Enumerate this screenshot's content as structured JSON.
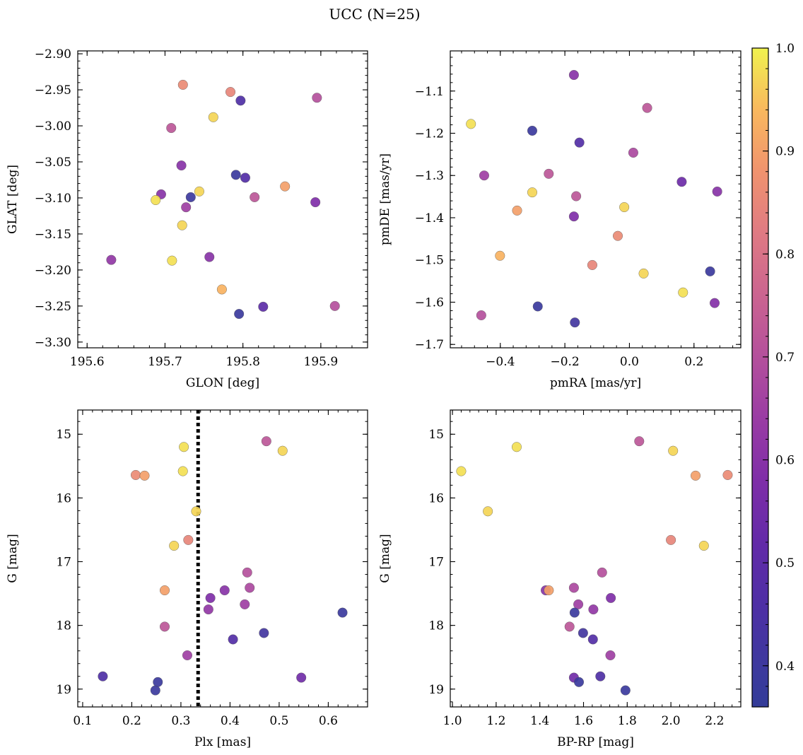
{
  "title": "UCC (N=25)",
  "colormap": {
    "name": "plasma",
    "range": [
      0.36,
      1.0
    ],
    "ticks": [
      0.4,
      0.5,
      0.6,
      0.7,
      0.8,
      0.9,
      1.0
    ],
    "tick_labels": [
      "0.4",
      "0.5",
      "0.6",
      "0.7",
      "0.8",
      "0.9",
      "1.0"
    ]
  },
  "chart_data": [
    {
      "type": "scatter",
      "panel": "top-left",
      "xlabel": "GLON [deg]",
      "ylabel": "GLAT [deg]",
      "xlim": [
        195.588,
        195.96
      ],
      "ylim": [
        -3.308,
        -2.896
      ],
      "xticks": [
        195.6,
        195.7,
        195.8,
        195.9
      ],
      "xtick_labels": [
        "195.6",
        "195.7",
        "195.8",
        "195.9"
      ],
      "yticks": [
        -2.9,
        -2.95,
        -3.0,
        -3.05,
        -3.1,
        -3.15,
        -3.2,
        -3.25,
        -3.3
      ],
      "ytick_labels": [
        "−2.90",
        "−2.95",
        "−3.00",
        "−3.05",
        "−3.10",
        "−3.15",
        "−3.20",
        "−3.25",
        "−3.30"
      ],
      "points": [
        {
          "x": 195.723,
          "y": -2.943,
          "c": 0.86
        },
        {
          "x": 195.784,
          "y": -2.953,
          "c": 0.85
        },
        {
          "x": 195.797,
          "y": -2.965,
          "c": 0.46
        },
        {
          "x": 195.895,
          "y": -2.961,
          "c": 0.7
        },
        {
          "x": 195.762,
          "y": -2.988,
          "c": 0.97
        },
        {
          "x": 195.708,
          "y": -3.003,
          "c": 0.72
        },
        {
          "x": 195.721,
          "y": -3.055,
          "c": 0.6
        },
        {
          "x": 195.791,
          "y": -3.068,
          "c": 0.39
        },
        {
          "x": 195.803,
          "y": -3.072,
          "c": 0.47
        },
        {
          "x": 195.854,
          "y": -3.084,
          "c": 0.9
        },
        {
          "x": 195.744,
          "y": -3.091,
          "c": 0.97
        },
        {
          "x": 195.695,
          "y": -3.095,
          "c": 0.6
        },
        {
          "x": 195.733,
          "y": -3.099,
          "c": 0.4
        },
        {
          "x": 195.815,
          "y": -3.099,
          "c": 0.72
        },
        {
          "x": 195.688,
          "y": -3.103,
          "c": 0.98
        },
        {
          "x": 195.893,
          "y": -3.106,
          "c": 0.58
        },
        {
          "x": 195.727,
          "y": -3.113,
          "c": 0.65
        },
        {
          "x": 195.722,
          "y": -3.138,
          "c": 0.97
        },
        {
          "x": 195.631,
          "y": -3.186,
          "c": 0.62
        },
        {
          "x": 195.709,
          "y": -3.187,
          "c": 0.98
        },
        {
          "x": 195.757,
          "y": -3.182,
          "c": 0.6
        },
        {
          "x": 195.773,
          "y": -3.227,
          "c": 0.93
        },
        {
          "x": 195.826,
          "y": -3.251,
          "c": 0.5
        },
        {
          "x": 195.918,
          "y": -3.25,
          "c": 0.7
        },
        {
          "x": 195.795,
          "y": -3.261,
          "c": 0.39
        }
      ]
    },
    {
      "type": "scatter",
      "panel": "top-right",
      "xlabel": "pmRA [mas/yr]",
      "ylabel": "pmDE [mas/yr]",
      "xlim": [
        -0.555,
        0.345
      ],
      "ylim": [
        -1.708,
        -1.005
      ],
      "xticks": [
        -0.4,
        -0.2,
        0.0,
        0.2
      ],
      "xtick_labels": [
        "−0.4",
        "−0.2",
        "0.0",
        "0.2"
      ],
      "yticks": [
        -1.1,
        -1.2,
        -1.3,
        -1.4,
        -1.5,
        -1.6,
        -1.7
      ],
      "ytick_labels": [
        "−1.1",
        "−1.2",
        "−1.3",
        "−1.4",
        "−1.5",
        "−1.6",
        "−1.7"
      ],
      "points": [
        {
          "x": -0.172,
          "y": -1.062,
          "c": 0.6
        },
        {
          "x": 0.055,
          "y": -1.14,
          "c": 0.72
        },
        {
          "x": -0.491,
          "y": -1.178,
          "c": 0.98
        },
        {
          "x": -0.301,
          "y": -1.194,
          "c": 0.39
        },
        {
          "x": -0.155,
          "y": -1.222,
          "c": 0.47
        },
        {
          "x": 0.012,
          "y": -1.246,
          "c": 0.68
        },
        {
          "x": -0.45,
          "y": -1.3,
          "c": 0.65
        },
        {
          "x": -0.25,
          "y": -1.296,
          "c": 0.72
        },
        {
          "x": 0.162,
          "y": -1.315,
          "c": 0.54
        },
        {
          "x": -0.301,
          "y": -1.34,
          "c": 0.97
        },
        {
          "x": -0.165,
          "y": -1.349,
          "c": 0.72
        },
        {
          "x": 0.272,
          "y": -1.338,
          "c": 0.6
        },
        {
          "x": -0.348,
          "y": -1.383,
          "c": 0.9
        },
        {
          "x": -0.016,
          "y": -1.375,
          "c": 0.97
        },
        {
          "x": -0.172,
          "y": -1.397,
          "c": 0.58
        },
        {
          "x": -0.036,
          "y": -1.443,
          "c": 0.86
        },
        {
          "x": -0.401,
          "y": -1.49,
          "c": 0.93
        },
        {
          "x": -0.115,
          "y": -1.512,
          "c": 0.85
        },
        {
          "x": 0.044,
          "y": -1.532,
          "c": 0.97
        },
        {
          "x": 0.25,
          "y": -1.527,
          "c": 0.39
        },
        {
          "x": 0.166,
          "y": -1.577,
          "c": 0.98
        },
        {
          "x": -0.284,
          "y": -1.61,
          "c": 0.39
        },
        {
          "x": 0.264,
          "y": -1.602,
          "c": 0.59
        },
        {
          "x": -0.459,
          "y": -1.631,
          "c": 0.7
        },
        {
          "x": -0.169,
          "y": -1.648,
          "c": 0.42
        }
      ]
    },
    {
      "type": "scatter",
      "panel": "bottom-left",
      "xlabel": "Plx [mas]",
      "ylabel": "G [mag]",
      "xlim": [
        0.09,
        0.68
      ],
      "ylim": [
        19.28,
        14.62
      ],
      "y_inverted": true,
      "xticks": [
        0.1,
        0.2,
        0.3,
        0.4,
        0.5,
        0.6
      ],
      "xtick_labels": [
        "0.1",
        "0.2",
        "0.3",
        "0.4",
        "0.5",
        "0.6"
      ],
      "yticks": [
        15,
        16,
        17,
        18,
        19
      ],
      "ytick_labels": [
        "15",
        "16",
        "17",
        "18",
        "19"
      ],
      "vline": {
        "x": 0.335,
        "style": "dotted",
        "color": "#000000"
      },
      "points": [
        {
          "x": 0.474,
          "y": 15.11,
          "c": 0.72
        },
        {
          "x": 0.306,
          "y": 15.2,
          "c": 0.98
        },
        {
          "x": 0.507,
          "y": 15.26,
          "c": 0.97
        },
        {
          "x": 0.304,
          "y": 15.58,
          "c": 0.98
        },
        {
          "x": 0.208,
          "y": 15.64,
          "c": 0.86
        },
        {
          "x": 0.226,
          "y": 15.65,
          "c": 0.9
        },
        {
          "x": 0.331,
          "y": 16.21,
          "c": 0.97
        },
        {
          "x": 0.315,
          "y": 16.66,
          "c": 0.85
        },
        {
          "x": 0.286,
          "y": 16.75,
          "c": 0.97
        },
        {
          "x": 0.435,
          "y": 17.17,
          "c": 0.7
        },
        {
          "x": 0.44,
          "y": 17.41,
          "c": 0.68
        },
        {
          "x": 0.267,
          "y": 17.45,
          "c": 0.9
        },
        {
          "x": 0.389,
          "y": 17.45,
          "c": 0.6
        },
        {
          "x": 0.36,
          "y": 17.57,
          "c": 0.58
        },
        {
          "x": 0.43,
          "y": 17.67,
          "c": 0.65
        },
        {
          "x": 0.356,
          "y": 17.75,
          "c": 0.62
        },
        {
          "x": 0.629,
          "y": 17.8,
          "c": 0.39
        },
        {
          "x": 0.267,
          "y": 18.02,
          "c": 0.72
        },
        {
          "x": 0.469,
          "y": 18.12,
          "c": 0.42
        },
        {
          "x": 0.406,
          "y": 18.22,
          "c": 0.47
        },
        {
          "x": 0.313,
          "y": 18.47,
          "c": 0.65
        },
        {
          "x": 0.141,
          "y": 18.8,
          "c": 0.46
        },
        {
          "x": 0.545,
          "y": 18.82,
          "c": 0.55
        },
        {
          "x": 0.253,
          "y": 18.89,
          "c": 0.39
        },
        {
          "x": 0.248,
          "y": 19.02,
          "c": 0.39
        }
      ]
    },
    {
      "type": "scatter",
      "panel": "bottom-right",
      "xlabel": "BP-RP [mag]",
      "ylabel": "G [mag]",
      "xlim": [
        0.99,
        2.32
      ],
      "ylim": [
        19.28,
        14.62
      ],
      "y_inverted": true,
      "xticks": [
        1.0,
        1.2,
        1.4,
        1.6,
        1.8,
        2.0,
        2.2
      ],
      "xtick_labels": [
        "1.0",
        "1.2",
        "1.4",
        "1.6",
        "1.8",
        "2.0",
        "2.2"
      ],
      "yticks": [
        15,
        16,
        17,
        18,
        19
      ],
      "ytick_labels": [
        "15",
        "16",
        "17",
        "18",
        "19"
      ],
      "points": [
        {
          "x": 1.855,
          "y": 15.11,
          "c": 0.72
        },
        {
          "x": 1.294,
          "y": 15.2,
          "c": 0.98
        },
        {
          "x": 2.01,
          "y": 15.26,
          "c": 0.97
        },
        {
          "x": 1.04,
          "y": 15.58,
          "c": 0.98
        },
        {
          "x": 2.26,
          "y": 15.64,
          "c": 0.86
        },
        {
          "x": 2.113,
          "y": 15.65,
          "c": 0.9
        },
        {
          "x": 1.162,
          "y": 16.21,
          "c": 0.97
        },
        {
          "x": 2.0,
          "y": 16.66,
          "c": 0.85
        },
        {
          "x": 2.151,
          "y": 16.75,
          "c": 0.97
        },
        {
          "x": 1.685,
          "y": 17.17,
          "c": 0.7
        },
        {
          "x": 1.556,
          "y": 17.41,
          "c": 0.68
        },
        {
          "x": 1.427,
          "y": 17.45,
          "c": 0.6
        },
        {
          "x": 1.441,
          "y": 17.45,
          "c": 0.9
        },
        {
          "x": 1.725,
          "y": 17.57,
          "c": 0.58
        },
        {
          "x": 1.576,
          "y": 17.67,
          "c": 0.65
        },
        {
          "x": 1.645,
          "y": 17.75,
          "c": 0.62
        },
        {
          "x": 1.559,
          "y": 17.8,
          "c": 0.39
        },
        {
          "x": 1.536,
          "y": 18.02,
          "c": 0.72
        },
        {
          "x": 1.598,
          "y": 18.12,
          "c": 0.42
        },
        {
          "x": 1.643,
          "y": 18.22,
          "c": 0.47
        },
        {
          "x": 1.723,
          "y": 18.47,
          "c": 0.65
        },
        {
          "x": 1.677,
          "y": 18.8,
          "c": 0.46
        },
        {
          "x": 1.556,
          "y": 18.82,
          "c": 0.55
        },
        {
          "x": 1.579,
          "y": 18.89,
          "c": 0.39
        },
        {
          "x": 1.792,
          "y": 19.02,
          "c": 0.39
        }
      ]
    }
  ]
}
